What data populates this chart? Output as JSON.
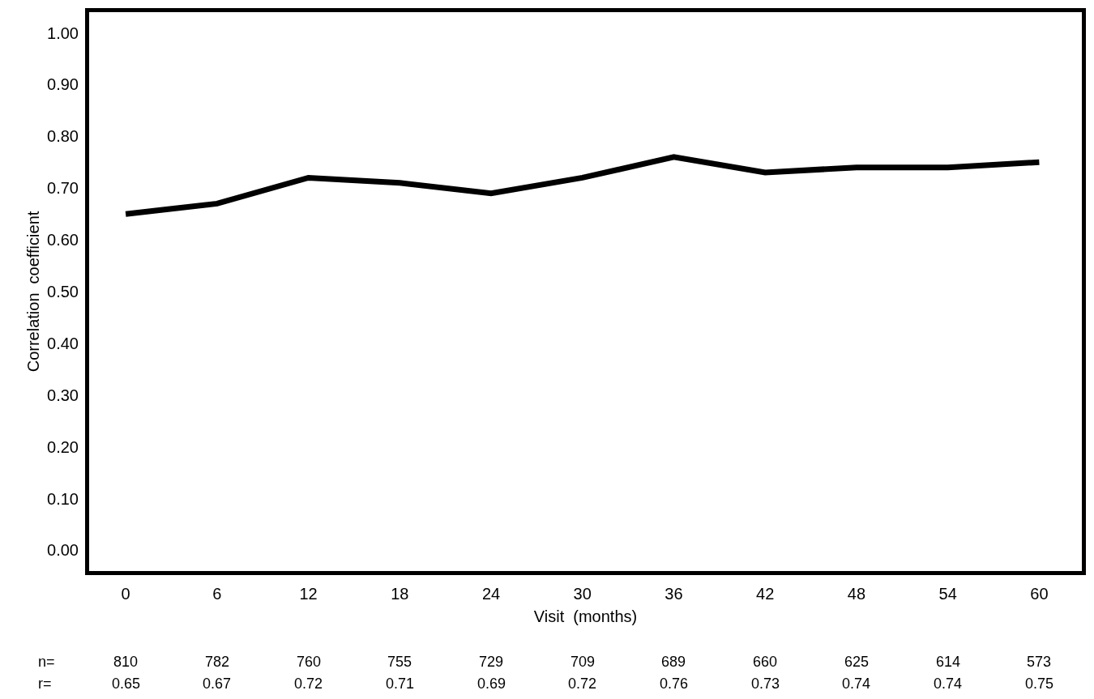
{
  "chart_data": {
    "type": "line",
    "xlabel": "Visit  (months)",
    "ylabel": "Correlation  coefficient",
    "x": [
      0,
      6,
      12,
      18,
      24,
      30,
      36,
      42,
      48,
      54,
      60
    ],
    "series": [
      {
        "color": "#000000",
        "values": [
          0.65,
          0.67,
          0.72,
          0.71,
          0.69,
          0.72,
          0.76,
          0.73,
          0.74,
          0.74,
          0.75
        ]
      }
    ],
    "xlim": [
      -2.4,
      62.8
    ],
    "xticks": [
      0,
      6,
      12,
      18,
      24,
      30,
      36,
      42,
      48,
      54,
      60
    ],
    "ylim": [
      -0.04,
      1.04
    ],
    "yticks": [
      {
        "value": 0,
        "label": "0.00"
      },
      {
        "value": 0.1,
        "label": "0.10"
      },
      {
        "value": 0.2,
        "label": "0.20"
      },
      {
        "value": 0.3,
        "label": "0.30"
      },
      {
        "value": 0.4,
        "label": "0.40"
      },
      {
        "value": 0.5,
        "label": "0.50"
      },
      {
        "value": 0.6,
        "label": "0.60"
      },
      {
        "value": 0.7,
        "label": "0.70"
      },
      {
        "value": 0.8,
        "label": "0.80"
      },
      {
        "value": 0.9,
        "label": "0.90"
      },
      {
        "value": 1,
        "label": "1.00"
      }
    ],
    "annotations": [
      "n=",
      "810",
      "782",
      "760",
      "755",
      "729",
      "709",
      "689",
      "660",
      "625",
      "614",
      "573",
      "r=",
      "0.65",
      "0.67",
      "0.72",
      "0.71",
      "0.69",
      "0.72",
      "0.76",
      "0.73",
      "0.74",
      "0.74",
      "0.75"
    ],
    "marker": "none",
    "line_style": "solid"
  }
}
